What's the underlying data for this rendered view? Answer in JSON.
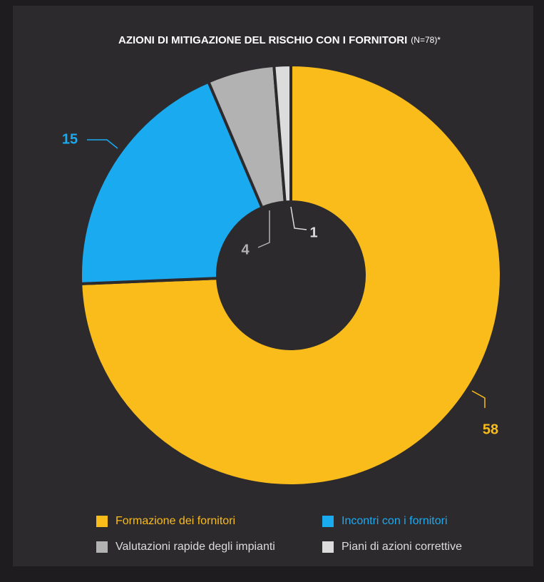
{
  "chart_data": {
    "type": "donut",
    "title": "AZIONI DI MITIGAZIONE DEL RISCHIO CON I FORNITORI",
    "subtitle": "(N=78)*",
    "categories": [
      "Formazione dei fornitori",
      "Incontri con i fornitori",
      "Valutazioni rapide degli impianti",
      "Piani di azioni correttive"
    ],
    "values": [
      58,
      15,
      4,
      1
    ],
    "colors": [
      "#f9bc1b",
      "#1aaaf0",
      "#b2b2b2",
      "#dcdcdc"
    ],
    "legend_text_colors": [
      "#f9bc1b",
      "#1aaaf0",
      "#dcdcdc",
      "#dcdcdc"
    ],
    "legend": "bottom"
  }
}
